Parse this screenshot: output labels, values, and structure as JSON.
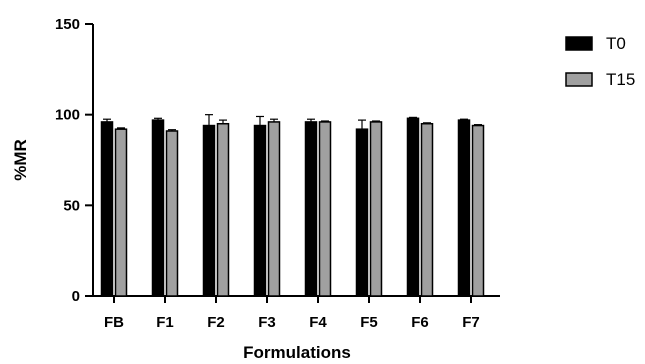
{
  "chart_data": {
    "type": "bar",
    "title": "",
    "xlabel": "Formulations",
    "ylabel": "%MR",
    "categories": [
      "FB",
      "F1",
      "F2",
      "F3",
      "F4",
      "F5",
      "F6",
      "F7"
    ],
    "ylim": [
      0,
      150
    ],
    "yticks": [
      "0",
      "50",
      "100",
      "150"
    ],
    "grid": false,
    "legend": "top-right",
    "series": [
      {
        "name": "T0",
        "color": "#000000",
        "values": [
          96,
          97,
          94,
          94,
          96,
          92,
          98,
          97
        ],
        "errors": [
          1.5,
          1,
          6,
          5,
          1.5,
          5,
          0.5,
          0.5
        ]
      },
      {
        "name": "T15",
        "color": "#a0a0a0",
        "values": [
          92,
          91,
          95,
          96,
          96,
          96,
          95,
          94
        ],
        "errors": [
          0.7,
          0.7,
          2,
          1.5,
          0.5,
          0.5,
          0.5,
          0.5
        ]
      }
    ]
  }
}
